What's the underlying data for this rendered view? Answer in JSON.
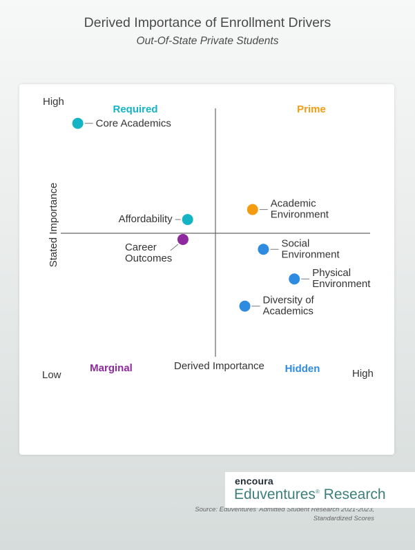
{
  "header": {
    "title": "Derived Importance of Enrollment Drivers",
    "subtitle": "Out-Of-State Private Students"
  },
  "chart_data": {
    "type": "scatter",
    "title": "Derived Importance of Enrollment Drivers",
    "subtitle": "Out-Of-State Private Students",
    "xlabel": "Derived Importance",
    "ylabel": "Stated Importance",
    "x_low_label": "Low",
    "x_high_label": "High",
    "y_low_label": "Low",
    "y_high_label": "High",
    "xlim": [
      -1,
      1
    ],
    "ylim": [
      -1,
      1
    ],
    "grid": false,
    "quadrants": [
      {
        "name": "Required",
        "position": "top-left",
        "color": "#14b4c4"
      },
      {
        "name": "Prime",
        "position": "top-right",
        "color": "#f39c12"
      },
      {
        "name": "Marginal",
        "position": "bottom-left",
        "color": "#8e2a9e"
      },
      {
        "name": "Hidden",
        "position": "bottom-right",
        "color": "#2e8be0"
      }
    ],
    "points": [
      {
        "label": "Core Academics",
        "x": -0.89,
        "y": 0.88,
        "color": "#14b4c4",
        "label_side": "right"
      },
      {
        "label": "Affordability",
        "x": -0.18,
        "y": 0.11,
        "color": "#14b4c4",
        "label_side": "left"
      },
      {
        "label": "Career\nOutcomes",
        "x": -0.21,
        "y": -0.05,
        "color": "#8e2a9e",
        "label_side": "below-left"
      },
      {
        "label": "Academic\nEnvironment",
        "x": 0.24,
        "y": 0.19,
        "color": "#f39c12",
        "label_side": "right"
      },
      {
        "label": "Social\nEnvironment",
        "x": 0.31,
        "y": -0.13,
        "color": "#2e8be0",
        "label_side": "right"
      },
      {
        "label": "Physical\nEnvironment",
        "x": 0.51,
        "y": -0.37,
        "color": "#2e8be0",
        "label_side": "right"
      },
      {
        "label": "Diversity of\nAcademics",
        "x": 0.19,
        "y": -0.59,
        "color": "#2e8be0",
        "label_side": "right"
      }
    ]
  },
  "source": {
    "line1": "Source: Eduventures' Admitted Student Research 2021-2023,",
    "line2": "Standardized Scores"
  },
  "logo": {
    "brand": "encoura",
    "name": "Eduventures",
    "reg": "®",
    "suffix": " Research"
  }
}
